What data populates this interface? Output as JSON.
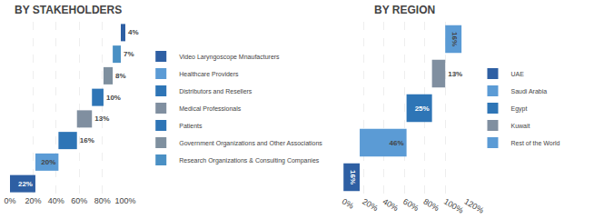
{
  "chart_data": [
    {
      "type": "waterfall",
      "orientation": "horizontal",
      "title": "BY STAKEHOLDERS",
      "categories": [
        "Video Laryngoscope Mnaufacturers",
        "Healthcare Providers",
        "Distributors and Resellers",
        "Medical Professionals",
        "Patients",
        "Government Organizations and Other Associations",
        "Research Organizations & Consulting Companies",
        null
      ],
      "values": [
        22,
        20,
        16,
        13,
        10,
        8,
        7,
        4
      ],
      "value_labels": [
        "22%",
        "20%",
        "16%",
        "13%",
        "10%",
        "8%",
        "7%",
        "4%"
      ],
      "colors": [
        "#2e5fa3",
        "#5b9bd5",
        "#2e75b6",
        "#808fa0",
        "#2e75b6",
        "#7f909f",
        "#4a90c4",
        "#2e5fa3"
      ],
      "xlim": [
        0,
        100
      ],
      "xticks": [
        {
          "value": 0,
          "label": "0%"
        },
        {
          "value": 20,
          "label": "20%"
        },
        {
          "value": 40,
          "label": "40%"
        },
        {
          "value": 60,
          "label": "60%"
        },
        {
          "value": 80,
          "label": "80%"
        },
        {
          "value": 100,
          "label": "100%"
        }
      ],
      "grid": true,
      "data_labels": true,
      "tick_labels": "x",
      "legend": "right"
    },
    {
      "type": "waterfall",
      "orientation": "horizontal",
      "title": "BY REGION",
      "categories": [
        "UAE",
        "Saudi Arabia",
        "Egypt",
        "Kuwait",
        "Rest of the World"
      ],
      "values": [
        16,
        46,
        25,
        13,
        16
      ],
      "value_labels": [
        "16%",
        "46%",
        "25%",
        "13%",
        "16%"
      ],
      "colors": [
        "#2e5fa3",
        "#5b9bd5",
        "#2e75b6",
        "#808fa0",
        "#5b9bd5"
      ],
      "xlim": [
        0,
        120
      ],
      "xticks": [
        {
          "value": 0,
          "label": "0%"
        },
        {
          "value": 20,
          "label": "20%"
        },
        {
          "value": 40,
          "label": "40%"
        },
        {
          "value": 60,
          "label": "60%"
        },
        {
          "value": 80,
          "label": "80%"
        },
        {
          "value": 100,
          "label": "100%"
        },
        {
          "value": 120,
          "label": "120%"
        }
      ],
      "grid": true,
      "data_labels": true,
      "tick_labels": "x",
      "legend": "right"
    }
  ]
}
